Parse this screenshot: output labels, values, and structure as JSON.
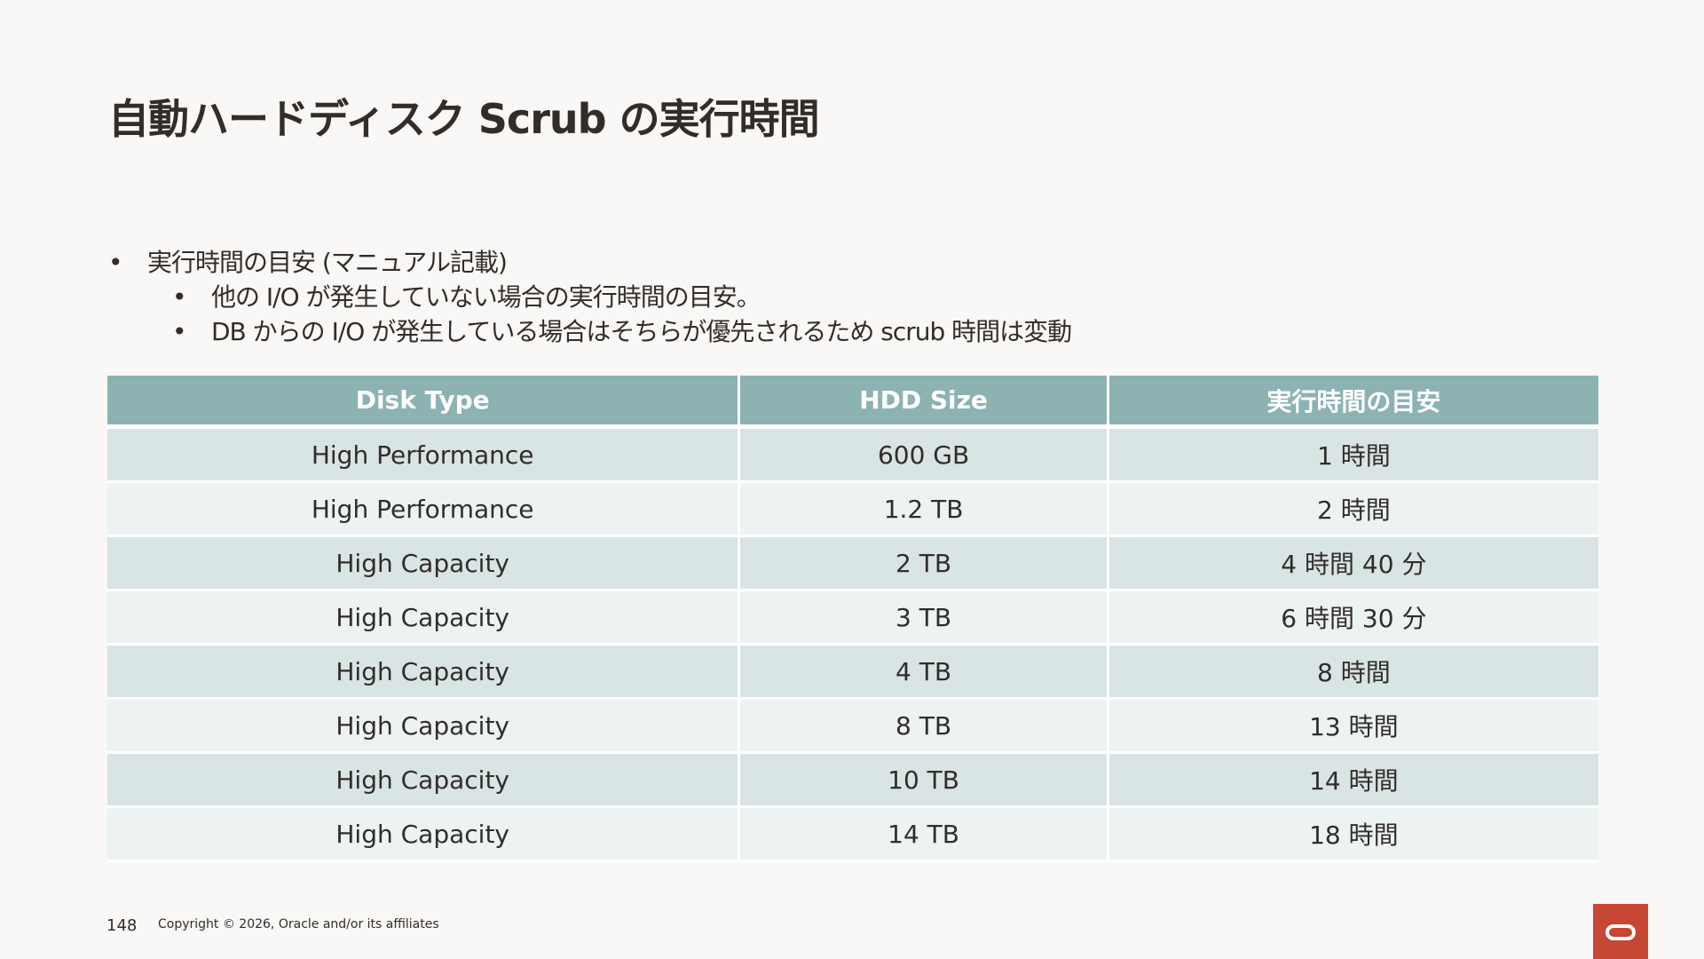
{
  "slide": {
    "title": "自動ハードディスク Scrub の実行時間",
    "bullets": [
      "実行時間の目安 (マニュアル記載)",
      "他の I/O が発生していない場合の実行時間の目安。",
      "DB からの I/O が発生している場合はそちらが優先されるため scrub 時間は変動"
    ]
  },
  "table": {
    "headers": [
      "Disk Type",
      "HDD Size",
      "実行時間の目安"
    ],
    "rows": [
      [
        "High Performance",
        "600 GB",
        "1 時間"
      ],
      [
        "High Performance",
        "1.2 TB",
        "2 時間"
      ],
      [
        "High Capacity",
        "2 TB",
        "4 時間 40 分"
      ],
      [
        "High Capacity",
        "3 TB",
        "6 時間 30 分"
      ],
      [
        "High Capacity",
        "4 TB",
        "8 時間"
      ],
      [
        "High Capacity",
        "8 TB",
        "13 時間"
      ],
      [
        "High Capacity",
        "10 TB",
        "14 時間"
      ],
      [
        "High Capacity",
        "14 TB",
        "18 時間"
      ]
    ]
  },
  "footer": {
    "page_number": "148",
    "copyright": "Copyright © 2026, Oracle and/or its affiliates"
  },
  "branding": {
    "logo_icon": "oracle-logo-icon",
    "logo_color": "#c74634",
    "header_color": "#8cb3b2"
  }
}
